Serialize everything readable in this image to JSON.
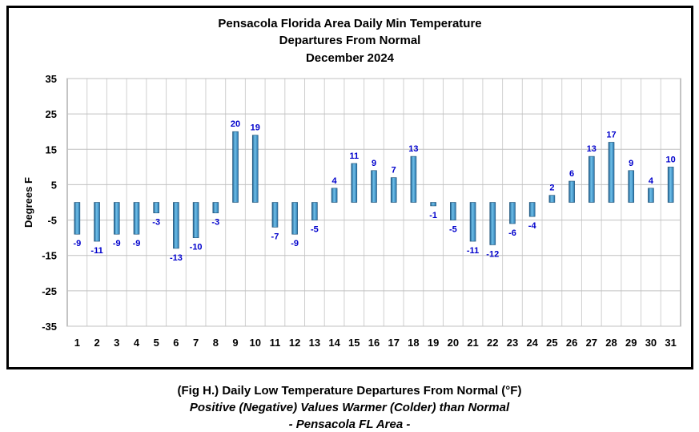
{
  "chart_data": {
    "type": "bar",
    "title": [
      "Pensacola Florida Area Daily Min Temperature",
      "Departures From Normal",
      "December 2024"
    ],
    "xlabel": "",
    "ylabel": "Degrees F",
    "ylim": [
      -35,
      35
    ],
    "yticks": [
      35,
      25,
      15,
      5,
      -5,
      -15,
      -25,
      -35
    ],
    "categories": [
      "1",
      "2",
      "3",
      "4",
      "5",
      "6",
      "7",
      "8",
      "9",
      "10",
      "11",
      "12",
      "13",
      "14",
      "15",
      "16",
      "17",
      "18",
      "19",
      "20",
      "21",
      "22",
      "23",
      "24",
      "25",
      "26",
      "27",
      "28",
      "29",
      "30",
      "31"
    ],
    "values": [
      -9,
      -11,
      -9,
      -9,
      -3,
      -13,
      -10,
      -3,
      20,
      19,
      -7,
      -9,
      -5,
      4,
      11,
      9,
      7,
      13,
      -1,
      -5,
      -11,
      -12,
      -6,
      -4,
      2,
      6,
      13,
      17,
      9,
      4,
      10
    ],
    "grid": true,
    "legend": "none",
    "bar_color": "#3a8fc4",
    "label_color": "#0000cc"
  },
  "caption": {
    "line1": "(Fig H.) Daily Low Temperature Departures From Normal (°F)",
    "line2": "Positive (Negative) Values Warmer (Colder) than Normal",
    "line3": "- Pensacola FL Area -"
  }
}
